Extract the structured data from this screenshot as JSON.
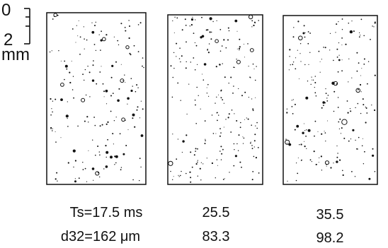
{
  "scale": {
    "ticks": [
      "0",
      "2"
    ],
    "unit": "mm"
  },
  "panels": [
    {
      "ts": "Ts=17.5 ms",
      "d32": "d32=162 μm"
    },
    {
      "ts": "25.5",
      "d32": "83.3"
    },
    {
      "ts": "35.5",
      "d32": "98.2"
    }
  ],
  "colors": {
    "ink": "#111111",
    "background": "#ffffff"
  }
}
